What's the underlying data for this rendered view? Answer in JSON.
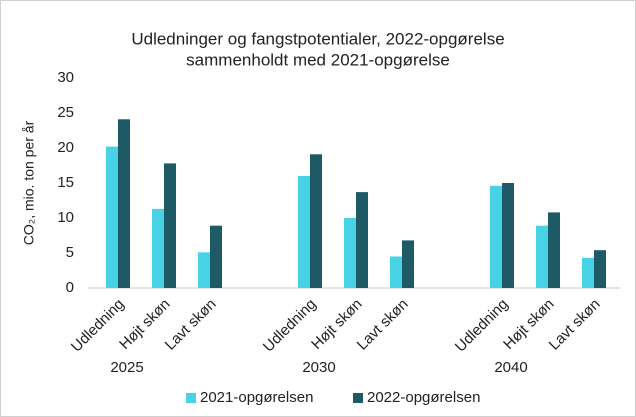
{
  "chart_data": {
    "type": "bar",
    "title": [
      "Udledninger og fangstpotentialer, 2022-opgørelse",
      "sammenholdt med 2021-opgørelse"
    ],
    "y_label": "CO₂, mio. ton per år",
    "groups": [
      "2025",
      "2030",
      "2040"
    ],
    "categories": [
      "Udledning",
      "Højt skøn",
      "Lavt skøn",
      "Udledning",
      "Højt skøn",
      "Lavt skøn",
      "Udledning",
      "Højt skøn",
      "Lavt skøn"
    ],
    "series": [
      {
        "name": "2021-opgørelsen",
        "color": "#48d2e6",
        "values": [
          20.2,
          11.3,
          5.1,
          16.0,
          10.0,
          4.5,
          14.6,
          8.9,
          4.3
        ]
      },
      {
        "name": "2022-opgørelsen",
        "color": "#1d5a66",
        "values": [
          24.1,
          17.8,
          8.9,
          19.1,
          13.7,
          6.8,
          15.0,
          10.8,
          5.4
        ]
      }
    ],
    "ylim": [
      0,
      30
    ],
    "yticks": [
      0,
      5,
      10,
      15,
      20,
      25,
      30
    ],
    "grid": false,
    "legend": "bottom"
  }
}
